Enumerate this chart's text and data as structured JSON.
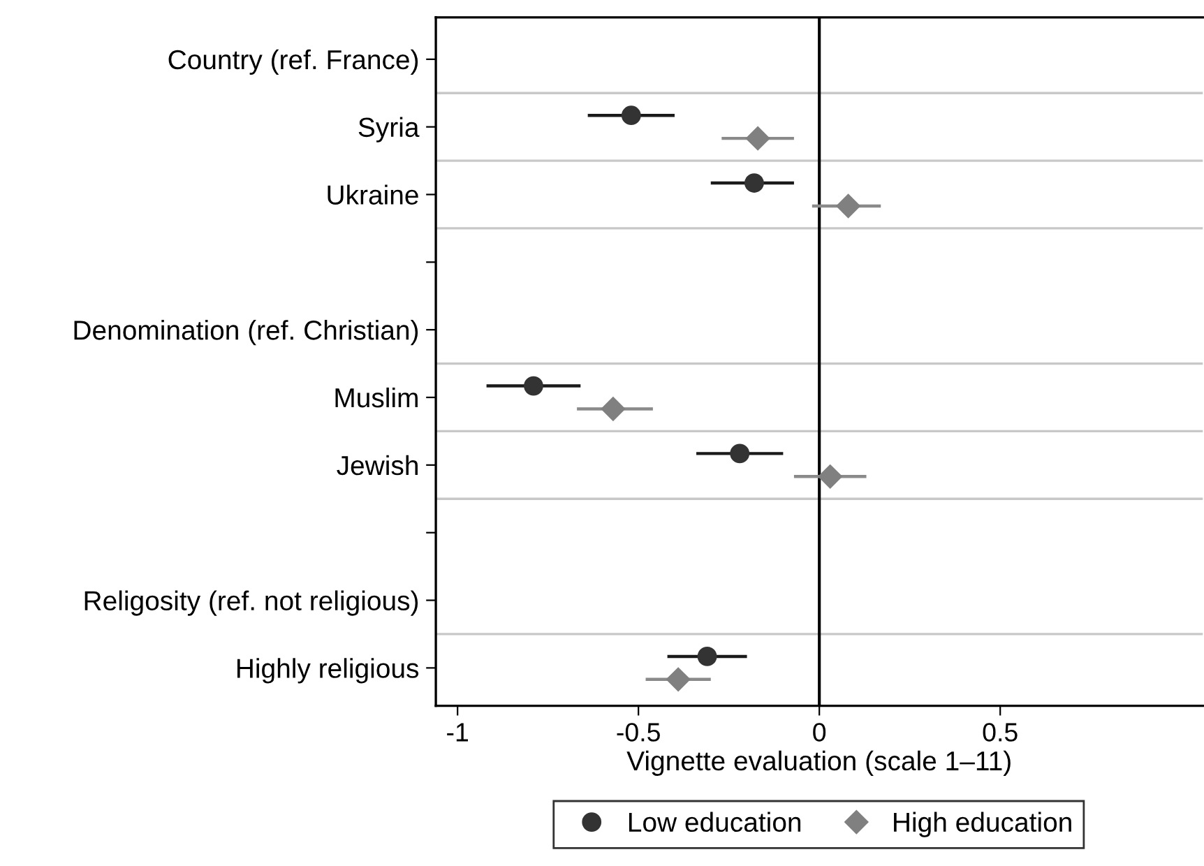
{
  "chart_data": {
    "type": "scatter",
    "orientation": "horizontal",
    "xlabel": "Vignette evaluation (scale 1–11)",
    "categories": [
      "Country (ref. France)",
      "Syria",
      "Ukraine",
      null,
      "Denomination (ref. Christian)",
      "Muslim",
      "Jewish",
      null,
      "Religosity (ref. not religious)",
      "Highly religious"
    ],
    "series": [
      {
        "name": "Low education",
        "color": "#333333",
        "marker": "circle",
        "values": [
          null,
          -0.52,
          -0.18,
          null,
          null,
          -0.79,
          -0.22,
          null,
          null,
          -0.31
        ],
        "errors": [
          null,
          [
            -0.64,
            -0.4
          ],
          [
            -0.3,
            -0.07
          ],
          null,
          null,
          [
            -0.92,
            -0.66
          ],
          [
            -0.34,
            -0.1
          ],
          null,
          null,
          [
            -0.42,
            -0.2
          ]
        ]
      },
      {
        "name": "High education",
        "color": "#808080",
        "marker": "diamond",
        "values": [
          null,
          -0.17,
          0.08,
          null,
          null,
          -0.57,
          0.03,
          null,
          null,
          -0.39
        ],
        "errors": [
          null,
          [
            -0.27,
            -0.07
          ],
          [
            -0.02,
            0.17
          ],
          null,
          null,
          [
            -0.67,
            -0.46
          ],
          [
            -0.07,
            0.13
          ],
          null,
          null,
          [
            -0.48,
            -0.3
          ]
        ]
      }
    ],
    "xlim": [
      -1.06,
      1.06
    ],
    "xticks": [
      -1,
      -0.5,
      0,
      0.5
    ],
    "ref_lines": [
      {
        "axis": "x",
        "value": 0,
        "color": "#000000"
      }
    ],
    "grid": true,
    "legend": "bottom"
  }
}
